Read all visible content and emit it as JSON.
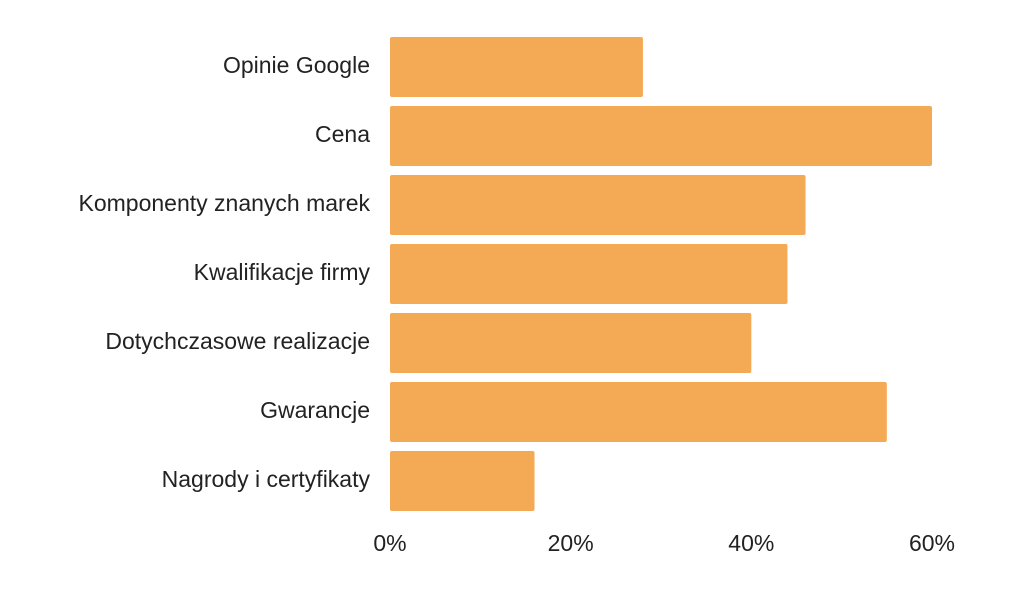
{
  "chart_data": {
    "type": "bar",
    "orientation": "horizontal",
    "categories": [
      "Opinie Google",
      "Cena",
      "Komponenty znanych marek",
      "Kwalifikacje firmy",
      "Dotychczasowe realizacje",
      "Gwarancje",
      "Nagrody i certyfikaty"
    ],
    "values": [
      28,
      60,
      46,
      44,
      40,
      55,
      16
    ],
    "color": "#f4aa55",
    "xlim": [
      0,
      60
    ],
    "xticks": [
      {
        "value": 0,
        "label": "0%"
      },
      {
        "value": 20,
        "label": "20%"
      },
      {
        "value": 40,
        "label": "40%"
      },
      {
        "value": 60,
        "label": "60%"
      }
    ],
    "grid": false
  }
}
